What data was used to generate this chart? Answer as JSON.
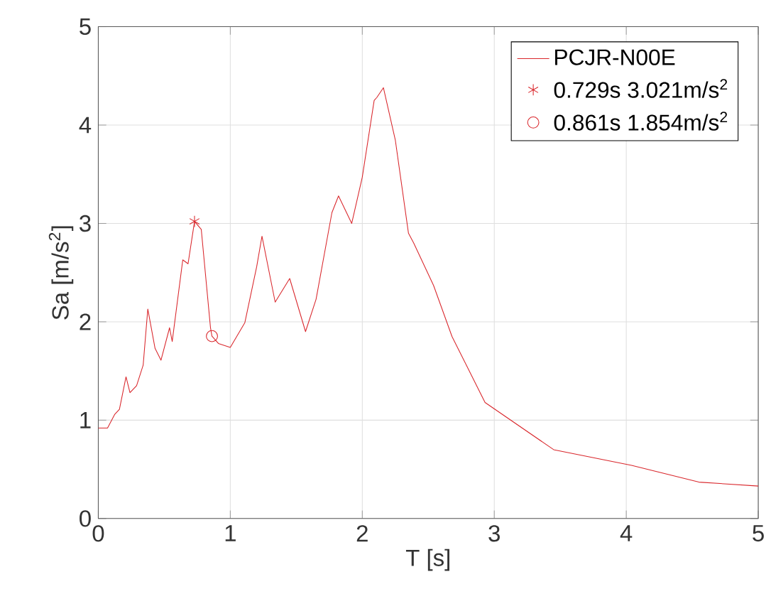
{
  "chart_data": {
    "type": "line",
    "xlabel": "T [s]",
    "ylabel": "Sa [m/s$^{2}$]",
    "xlim": [
      0,
      5
    ],
    "ylim": [
      0,
      5
    ],
    "xticks": [
      0,
      1,
      2,
      3,
      4,
      5
    ],
    "yticks": [
      0,
      1,
      2,
      3,
      4,
      5
    ],
    "grid": true,
    "legend": "top right",
    "series": [
      {
        "name": "PCJR-N00E",
        "color": "#d9262b",
        "marker": "none",
        "line_style": "solid",
        "x": [
          0,
          0.07,
          0.125,
          0.16,
          0.21,
          0.24,
          0.29,
          0.34,
          0.375,
          0.43,
          0.475,
          0.54,
          0.56,
          0.64,
          0.68,
          0.729,
          0.78,
          0.85,
          0.861,
          0.91,
          1.0,
          1.11,
          1.2,
          1.24,
          1.34,
          1.45,
          1.57,
          1.65,
          1.77,
          1.82,
          1.92,
          2.0,
          2.09,
          2.11,
          2.16,
          2.25,
          2.35,
          2.39,
          2.54,
          2.68,
          2.93,
          3.45,
          4.04,
          4.55,
          5.0
        ],
        "values": [
          0.92,
          0.92,
          1.06,
          1.11,
          1.44,
          1.28,
          1.35,
          1.56,
          2.13,
          1.73,
          1.61,
          1.94,
          1.8,
          2.63,
          2.59,
          3.021,
          2.94,
          1.94,
          1.854,
          1.78,
          1.74,
          1.99,
          2.56,
          2.87,
          2.2,
          2.44,
          1.9,
          2.23,
          3.11,
          3.28,
          3.0,
          3.47,
          4.25,
          4.28,
          4.38,
          3.85,
          2.9,
          2.8,
          2.37,
          1.85,
          1.18,
          0.7,
          0.54,
          0.37,
          0.33
        ]
      },
      {
        "name": "0.729s 3.021m/s$^{2}$",
        "type": "scatter",
        "color": "#d9262b",
        "marker": "cross",
        "x": [
          0.729
        ],
        "values": [
          3.021
        ]
      },
      {
        "name": "0.861s 1.854m/s$^{2}$",
        "type": "scatter",
        "color": "#d9262b",
        "marker": "circle",
        "x": [
          0.861
        ],
        "values": [
          1.854
        ]
      }
    ]
  }
}
